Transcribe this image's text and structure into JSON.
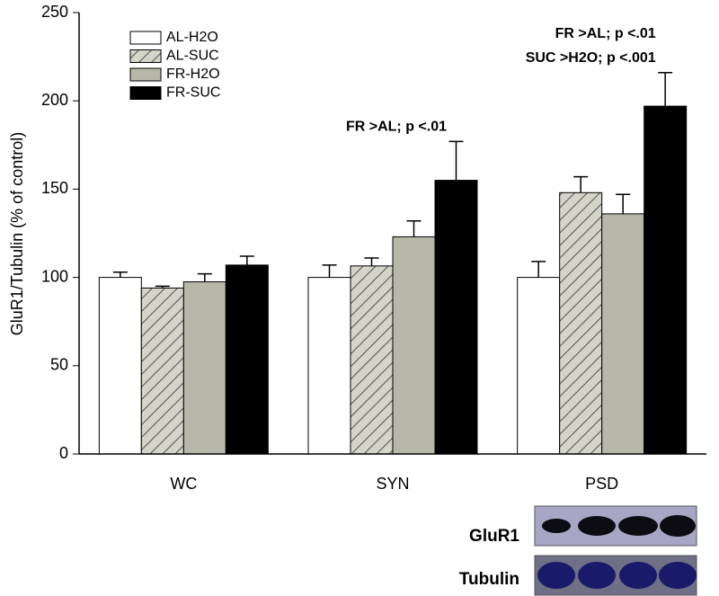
{
  "chart_data": {
    "type": "bar",
    "y_label": "GluR1/Tubulin (% of control)",
    "categories": [
      "WC",
      "SYN",
      "PSD"
    ],
    "series": [
      {
        "name": "AL-H2O",
        "color": "#ffffff",
        "values": [
          100,
          100,
          100
        ],
        "errors": [
          3,
          7,
          9
        ]
      },
      {
        "name": "AL-SUC",
        "color": "#d4d4c8",
        "hatch": true,
        "values": [
          94,
          106.5,
          148
        ],
        "errors": [
          1,
          4.5,
          9
        ]
      },
      {
        "name": "FR-H2O",
        "color": "#b8b8aa",
        "values": [
          97.5,
          123,
          136
        ],
        "errors": [
          4.5,
          9,
          11
        ]
      },
      {
        "name": "FR-SUC",
        "color": "#000000",
        "values": [
          107,
          155,
          197
        ],
        "errors": [
          5,
          22,
          19
        ]
      }
    ],
    "ylim": [
      0,
      250
    ],
    "yticks": [
      0,
      50,
      100,
      150,
      200,
      250
    ],
    "legend": "upper left",
    "annotations": [
      {
        "text": "FR >AL; p <.01",
        "category": 1
      },
      {
        "text": "FR >AL; p <.01",
        "category": 2
      },
      {
        "text": "SUC >H2O; p <.001",
        "category": 2
      }
    ]
  },
  "blot_labels": [
    "GluR1",
    "Tubulin"
  ]
}
